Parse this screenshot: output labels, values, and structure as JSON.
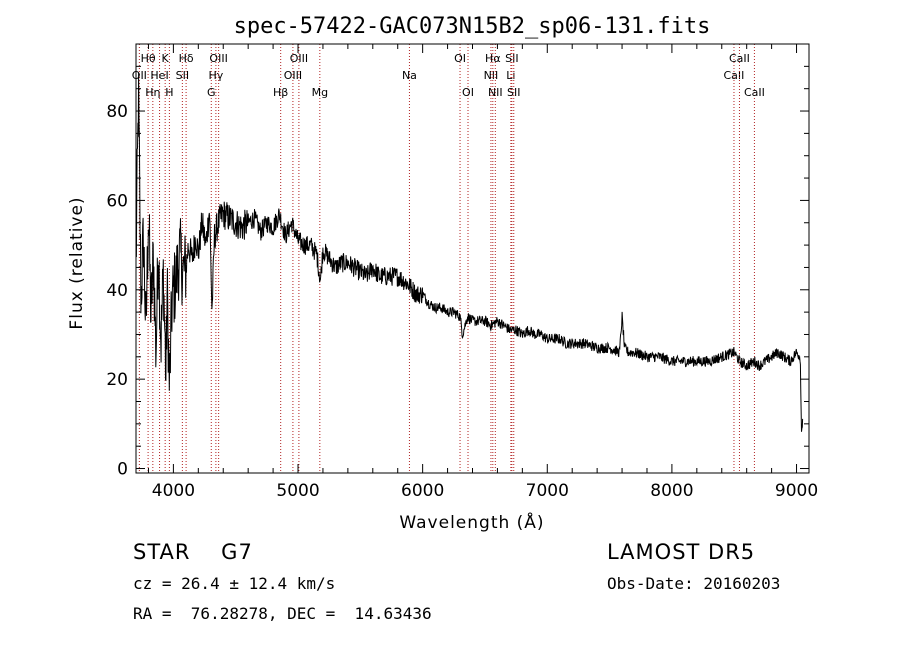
{
  "chart_data": {
    "type": "line",
    "title": "spec-57422-GAC073N15B2_sp06-131.fits",
    "xlabel": "Wavelength (Å)",
    "ylabel": "Flux (relative)",
    "xlim": [
      3700,
      9100
    ],
    "ylim": [
      -1,
      95
    ],
    "xticks": [
      4000,
      5000,
      6000,
      7000,
      8000,
      9000
    ],
    "yticks": [
      0,
      20,
      40,
      60,
      80
    ],
    "grid": false,
    "legend": "none",
    "line_color": "#000000",
    "marker_line_color": "#b22222",
    "spectrum": {
      "x": [
        3700,
        3720,
        3740,
        3760,
        3780,
        3800,
        3820,
        3840,
        3860,
        3880,
        3900,
        3920,
        3940,
        3950,
        3968,
        3990,
        4020,
        4050,
        4080,
        4102,
        4120,
        4150,
        4180,
        4200,
        4230,
        4260,
        4290,
        4310,
        4330,
        4360,
        4400,
        4450,
        4500,
        4550,
        4600,
        4650,
        4700,
        4750,
        4800,
        4850,
        4900,
        4950,
        5000,
        5050,
        5100,
        5150,
        5180,
        5200,
        5250,
        5300,
        5350,
        5400,
        5450,
        5500,
        5550,
        5600,
        5650,
        5700,
        5750,
        5800,
        5850,
        5890,
        5950,
        6000,
        6050,
        6100,
        6150,
        6200,
        6250,
        6300,
        6320,
        6360,
        6400,
        6450,
        6500,
        6550,
        6600,
        6650,
        6700,
        6750,
        6800,
        6850,
        6900,
        6950,
        7000,
        7050,
        7100,
        7150,
        7200,
        7300,
        7400,
        7500,
        7580,
        7600,
        7620,
        7650,
        7700,
        7800,
        7900,
        8000,
        8100,
        8200,
        8300,
        8400,
        8498,
        8542,
        8600,
        8662,
        8700,
        8750,
        8800,
        8850,
        8900,
        8950,
        9000,
        9030,
        9040,
        9050
      ],
      "y": [
        45,
        84,
        38,
        52,
        30,
        58,
        34,
        48,
        26,
        50,
        28,
        44,
        20,
        40,
        18,
        38,
        42,
        48,
        44,
        45,
        50,
        47,
        52,
        48,
        55,
        50,
        58,
        35,
        52,
        55,
        57,
        56,
        55,
        54,
        55,
        56,
        53,
        55,
        54,
        57,
        52,
        55,
        51,
        50,
        50,
        48,
        42,
        49,
        47,
        45,
        46,
        46,
        45,
        44,
        43,
        45,
        43,
        43,
        43,
        43,
        42,
        41,
        39,
        39,
        37,
        36,
        36,
        35,
        35,
        34,
        30,
        34,
        33,
        33,
        33,
        32,
        33,
        32,
        31,
        31,
        30,
        31,
        30,
        30,
        29,
        29,
        29,
        28,
        28,
        28,
        27,
        27,
        26,
        34,
        27,
        26,
        26,
        25,
        25,
        24,
        24,
        24,
        24,
        25,
        26,
        24,
        23,
        24,
        23,
        24,
        25,
        26,
        25,
        24,
        26,
        25,
        8,
        12
      ]
    },
    "line_markers": [
      {
        "label": "OII",
        "wl": 3727,
        "row": 2
      },
      {
        "label": "Hθ",
        "wl": 3797,
        "row": 1
      },
      {
        "label": "Hη",
        "wl": 3835,
        "row": 3
      },
      {
        "label": "HeI",
        "wl": 3889,
        "row": 2
      },
      {
        "label": "K",
        "wl": 3934,
        "row": 1
      },
      {
        "label": "H",
        "wl": 3968,
        "row": 3
      },
      {
        "label": "SII",
        "wl": 4072,
        "row": 2
      },
      {
        "label": "Hδ",
        "wl": 4102,
        "row": 1
      },
      {
        "label": "G",
        "wl": 4304,
        "row": 3
      },
      {
        "label": "Hγ",
        "wl": 4341,
        "row": 2
      },
      {
        "label": "OIII",
        "wl": 4363,
        "row": 1
      },
      {
        "label": "Hβ",
        "wl": 4861,
        "row": 3
      },
      {
        "label": "OIII",
        "wl": 4959,
        "row": 2
      },
      {
        "label": "OIII",
        "wl": 5007,
        "row": 1
      },
      {
        "label": "Mg",
        "wl": 5175,
        "row": 3
      },
      {
        "label": "Na",
        "wl": 5894,
        "row": 2
      },
      {
        "label": "OI",
        "wl": 6300,
        "row": 1
      },
      {
        "label": "OI",
        "wl": 6364,
        "row": 3
      },
      {
        "label": "NII",
        "wl": 6548,
        "row": 2
      },
      {
        "label": "Hα",
        "wl": 6563,
        "row": 1
      },
      {
        "label": "NII",
        "wl": 6583,
        "row": 3
      },
      {
        "label": "Li",
        "wl": 6708,
        "row": 2
      },
      {
        "label": "SII",
        "wl": 6716,
        "row": 1
      },
      {
        "label": "SII",
        "wl": 6731,
        "row": 3
      },
      {
        "label": "CaII",
        "wl": 8498,
        "row": 2
      },
      {
        "label": "CaII",
        "wl": 8542,
        "row": 1
      },
      {
        "label": "CaII",
        "wl": 8662,
        "row": 3
      }
    ]
  },
  "info": {
    "class_line": "STAR    G7",
    "survey": "LAMOST DR5",
    "cz_line": "cz = 26.4 ± 12.4 km/s",
    "obs_date": "Obs-Date: 20160203",
    "coords": "RA =  76.28278, DEC =  14.63436"
  }
}
